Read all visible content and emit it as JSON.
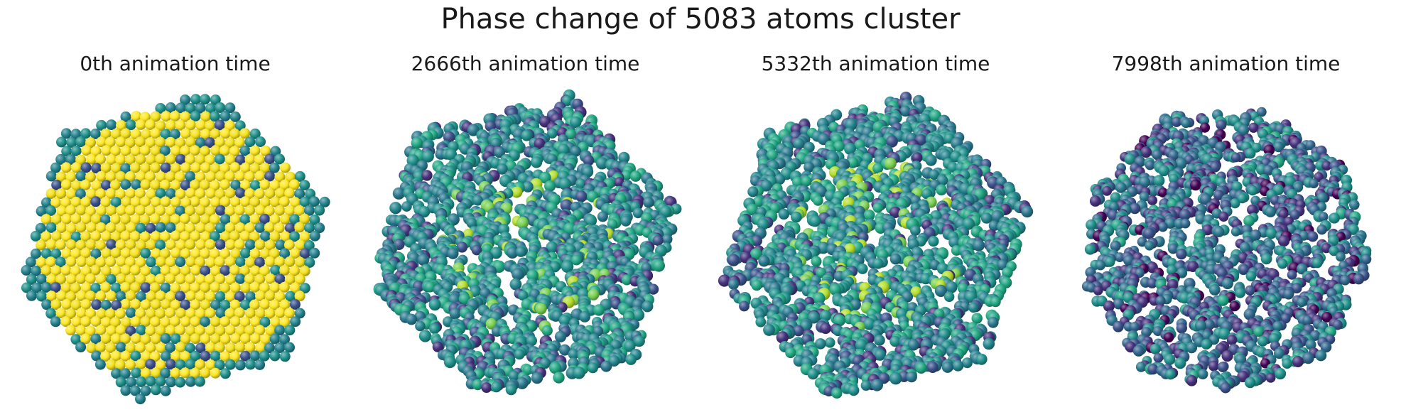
{
  "figure": {
    "title": "Phase change of 5083 atoms cluster"
  },
  "panels": [
    {
      "title": "0th animation time",
      "state": "ordered",
      "palette": [
        "#fde725",
        "#fde725",
        "#f5e11d",
        "#21918c",
        "#25838e",
        "#3b528b"
      ]
    },
    {
      "title": "2666th animation time",
      "state": "partially-melted",
      "palette": [
        "#21918c",
        "#25858e",
        "#2a788e",
        "#22a884",
        "#3b528b",
        "#46337e",
        "#7ad151",
        "#b5de2b"
      ]
    },
    {
      "title": "5332th animation time",
      "state": "partially-melted",
      "palette": [
        "#21918c",
        "#25858e",
        "#2a788e",
        "#22a884",
        "#3b528b",
        "#46337e",
        "#7ad151",
        "#b5de2b"
      ]
    },
    {
      "title": "7998th animation time",
      "state": "melted",
      "palette": [
        "#3b528b",
        "#31688e",
        "#2a788e",
        "#46337e",
        "#21918c",
        "#440154",
        "#22a884"
      ]
    }
  ]
}
